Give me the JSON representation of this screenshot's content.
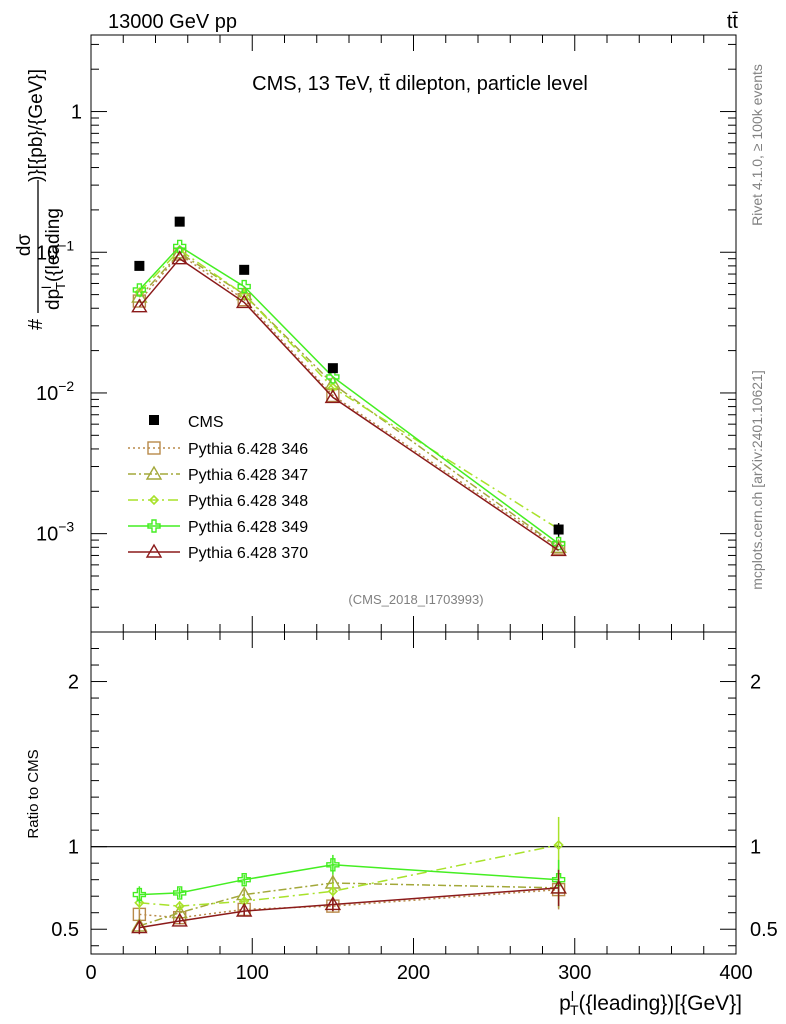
{
  "header": {
    "left": "13000 GeV pp",
    "right": "tt̄"
  },
  "side_text": {
    "rivet": "Rivet 4.1.0, ≥ 100k events",
    "mcplots": "mcplots.cern.ch [arXiv:2401.10621]"
  },
  "chart_data": {
    "type": "line",
    "title": "CMS, 13 TeV, tt̄ dilepton, particle level",
    "watermark": "(CMS_2018_I1703993)",
    "x": [
      30,
      55,
      95,
      150,
      290
    ],
    "xlim": [
      0,
      400
    ],
    "x_ticks": [
      "0",
      "100",
      "200",
      "300",
      "400"
    ],
    "xlabel": {
      "p": "p",
      "sup": "l",
      "sub": "T",
      "rest": "({leading})[{GeV}]"
    },
    "ylabel_main": {
      "hash": "#",
      "num": "dσ",
      "den_p": "dp",
      "den_sup": "l",
      "den_sub": "T",
      "den_rest": "({leading",
      "tail": ")}[{pb}/{GeV}]"
    },
    "ylim_main": [
      0.0002,
      3.5
    ],
    "y_ticks_main": [
      {
        "value": 1,
        "base": "1",
        "exp": ""
      },
      {
        "value": 0.1,
        "base": "10",
        "exp": "−1"
      },
      {
        "value": 0.01,
        "base": "10",
        "exp": "−2"
      },
      {
        "value": 0.001,
        "base": "10",
        "exp": "−3"
      }
    ],
    "ylabel_ratio": "Ratio to CMS",
    "ylim_ratio": [
      0.35,
      2.3
    ],
    "y_ticks_ratio": [
      "0.5",
      "1",
      "2"
    ],
    "data": {
      "name": "CMS",
      "color": "#000000",
      "values": [
        0.08,
        0.165,
        0.075,
        0.015,
        0.00107
      ],
      "errors": [
        0.002,
        0.004,
        0.002,
        0.0005,
        0.00012
      ]
    },
    "series": [
      {
        "name": "Pythia 6.428 346",
        "color": "#b88a4a",
        "marker": "square",
        "dash": "2,3",
        "values": [
          0.045,
          0.097,
          0.046,
          0.0096,
          0.00079
        ],
        "ratio": [
          0.59,
          0.57,
          0.62,
          0.64,
          0.74
        ],
        "ratio_err": [
          0.03,
          0.02,
          0.03,
          0.04,
          0.12
        ]
      },
      {
        "name": "Pythia 6.428 347",
        "color": "#a3a83a",
        "marker": "triangle",
        "dash": "8,3,2,3",
        "values": [
          0.048,
          0.099,
          0.05,
          0.0116,
          0.0008
        ],
        "ratio": [
          0.52,
          0.6,
          0.71,
          0.78,
          0.75
        ],
        "ratio_err": [
          0.04,
          0.03,
          0.03,
          0.05,
          0.12
        ]
      },
      {
        "name": "Pythia 6.428 348",
        "color": "#a8e22a",
        "marker": "diamond",
        "dash": "10,4,2,4",
        "values": [
          0.052,
          0.104,
          0.05,
          0.0109,
          0.00108
        ],
        "ratio": [
          0.66,
          0.64,
          0.67,
          0.73,
          1.01
        ],
        "ratio_err": [
          0.04,
          0.03,
          0.03,
          0.05,
          0.17
        ]
      },
      {
        "name": "Pythia 6.428 349",
        "color": "#44ee22",
        "marker": "cross",
        "dash": "",
        "values": [
          0.054,
          0.11,
          0.057,
          0.013,
          0.00085
        ],
        "ratio": [
          0.71,
          0.72,
          0.8,
          0.89,
          0.8
        ],
        "ratio_err": [
          0.05,
          0.03,
          0.03,
          0.06,
          0.12
        ]
      },
      {
        "name": "Pythia 6.428 370",
        "color": "#8b1a1a",
        "marker": "triangle",
        "dash": "",
        "values": [
          0.041,
          0.09,
          0.044,
          0.0093,
          0.00076
        ],
        "ratio": [
          0.51,
          0.55,
          0.61,
          0.65,
          0.75
        ],
        "ratio_err": [
          0.04,
          0.02,
          0.03,
          0.04,
          0.11
        ]
      }
    ]
  }
}
